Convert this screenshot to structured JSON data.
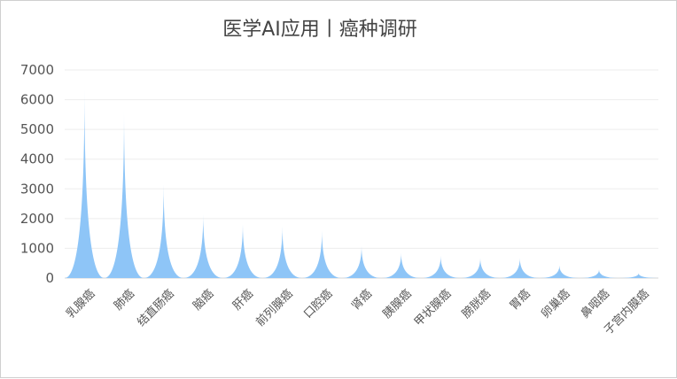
{
  "chart_data": {
    "type": "bar",
    "title": "医学AI应用丨癌种调研",
    "categories": [
      "乳腺癌",
      "肺癌",
      "结直肠癌",
      "脑癌",
      "肝癌",
      "前列腺癌",
      "口腔癌",
      "肾癌",
      "胰腺癌",
      "甲状腺癌",
      "膀胱癌",
      "胃癌",
      "卵巢癌",
      "鼻咽癌",
      "子宫内膜癌"
    ],
    "values": [
      6350,
      5600,
      3150,
      2150,
      1850,
      1750,
      1600,
      1080,
      850,
      750,
      680,
      680,
      420,
      280,
      160
    ],
    "ylim": [
      0,
      7000
    ],
    "yticks": [
      0,
      1000,
      2000,
      3000,
      4000,
      5000,
      6000,
      7000
    ],
    "xlabel": "",
    "ylabel": "",
    "grid": true,
    "color": "#8ec5f7"
  }
}
